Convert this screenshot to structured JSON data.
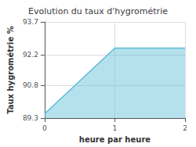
{
  "chart_data": {
    "type": "area",
    "title": "Evolution du taux d'hygrométrie",
    "xlabel": "heure par heure",
    "ylabel": "Taux hygrométrie %",
    "x": [
      0,
      1,
      2
    ],
    "values": [
      89.5,
      92.5,
      92.5
    ],
    "color": "#5bbcd8",
    "xlim": [
      0,
      2
    ],
    "xticks": [
      0,
      1,
      2
    ],
    "ylim": [
      89.3,
      93.7
    ],
    "yticks": [
      89.3,
      90.8,
      92.2,
      93.7
    ],
    "grid": true
  }
}
